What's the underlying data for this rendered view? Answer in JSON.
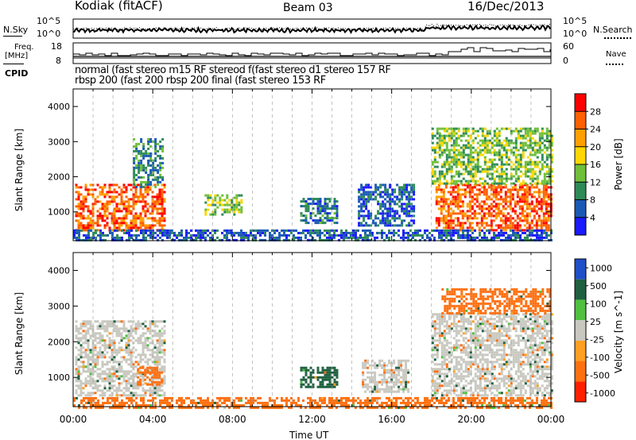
{
  "header": {
    "station": "Kodiak (fitACF)",
    "beam": "Beam 03",
    "date": "16/Dec/2013"
  },
  "noise_panel": {
    "left_label": "N.Sky",
    "right_label": "N.Search",
    "left_ticks": [
      "10^5",
      "10^0"
    ],
    "right_ticks": [
      "10^5",
      "10^0"
    ]
  },
  "freq_panel": {
    "left_label_1": "Freq.",
    "left_label_2": "[MHz]",
    "right_label": "Nave",
    "left_ticks": [
      "18",
      "8"
    ],
    "right_ticks": [
      "60",
      "0"
    ]
  },
  "cpid": {
    "label": "CPID",
    "row1": "normal (fast stereo m15 RF stereod f(fast stereo d1 stereo 157 RF",
    "row2": "rbsp 200 (fast 200 rbsp 200 final (fast stereo 153 RF"
  },
  "colors": {
    "power_scale": [
      "#1a1aff",
      "#1a5ab4",
      "#2e8b57",
      "#6fbf3a",
      "#ffd700",
      "#ffa000",
      "#ff6000",
      "#ff0000"
    ],
    "velocity_scale": [
      "#2050c8",
      "#206040",
      "#50c040",
      "#c8c8c0",
      "#ffa020",
      "#ff7010",
      "#ff2000"
    ]
  },
  "chart_data": [
    {
      "type": "heatmap",
      "title": "",
      "xlabel": "Time UT",
      "ylabel": "Slant Range [km]",
      "xlim": [
        "00:00",
        "24:00"
      ],
      "ylim": [
        180,
        4500
      ],
      "x_ticks": [
        "00:00",
        "04:00",
        "08:00",
        "12:00",
        "16:00",
        "20:00",
        "00:00"
      ],
      "y_ticks": [
        "1000",
        "2000",
        "3000",
        "4000"
      ],
      "colorbar_label": "Power [dB]",
      "colorbar_ticks": [
        "4",
        "8",
        "12",
        "16",
        "20",
        "24",
        "28"
      ],
      "colorbar_range": [
        0,
        32
      ],
      "regions": [
        {
          "t_start": 0.1,
          "t_end": 4.6,
          "range_low": 500,
          "range_high": 1800,
          "level": 26
        },
        {
          "t_start": 3.0,
          "t_end": 4.5,
          "range_low": 1700,
          "range_high": 3100,
          "level": 10
        },
        {
          "t_start": 6.6,
          "t_end": 8.4,
          "range_low": 900,
          "range_high": 1500,
          "level": 14
        },
        {
          "t_start": 11.4,
          "t_end": 13.2,
          "range_low": 700,
          "range_high": 1400,
          "level": 8
        },
        {
          "t_start": 14.3,
          "t_end": 17.1,
          "range_low": 600,
          "range_high": 1800,
          "level": 6
        },
        {
          "t_start": 18.2,
          "t_end": 24.0,
          "range_low": 500,
          "range_high": 1800,
          "level": 26
        },
        {
          "t_start": 18.0,
          "t_end": 24.0,
          "range_low": 1800,
          "range_high": 3400,
          "level": 14
        },
        {
          "t_start": 0.0,
          "t_end": 24.0,
          "range_low": 180,
          "range_high": 500,
          "level": 6
        }
      ]
    },
    {
      "type": "heatmap",
      "title": "",
      "xlabel": "Time UT",
      "ylabel": "Slant Range [km]",
      "xlim": [
        "00:00",
        "24:00"
      ],
      "ylim": [
        180,
        4500
      ],
      "x_ticks": [
        "00:00",
        "04:00",
        "08:00",
        "12:00",
        "16:00",
        "20:00",
        "00:00"
      ],
      "y_ticks": [
        "1000",
        "2000",
        "3000",
        "4000"
      ],
      "colorbar_label": "Velocity [m s^-1]",
      "colorbar_ticks": [
        "1000",
        "500",
        "100",
        "25",
        "-25",
        "-100",
        "-500",
        "-1000"
      ],
      "regions": [
        {
          "t_start": 0.1,
          "t_end": 4.6,
          "range_low": 500,
          "range_high": 2600,
          "velocity": 0
        },
        {
          "t_start": 3.2,
          "t_end": 4.5,
          "range_low": 800,
          "range_high": 1300,
          "velocity": -150
        },
        {
          "t_start": 11.4,
          "t_end": 13.2,
          "range_low": 700,
          "range_high": 1300,
          "velocity": 150
        },
        {
          "t_start": 14.5,
          "t_end": 16.8,
          "range_low": 600,
          "range_high": 1500,
          "velocity": 0
        },
        {
          "t_start": 18.0,
          "t_end": 24.0,
          "range_low": 500,
          "range_high": 2800,
          "velocity": 0
        },
        {
          "t_start": 18.5,
          "t_end": 24.0,
          "range_low": 2800,
          "range_high": 3500,
          "velocity": -150
        },
        {
          "t_start": 0.0,
          "t_end": 24.0,
          "range_low": 180,
          "range_high": 450,
          "velocity": -150
        }
      ]
    }
  ]
}
